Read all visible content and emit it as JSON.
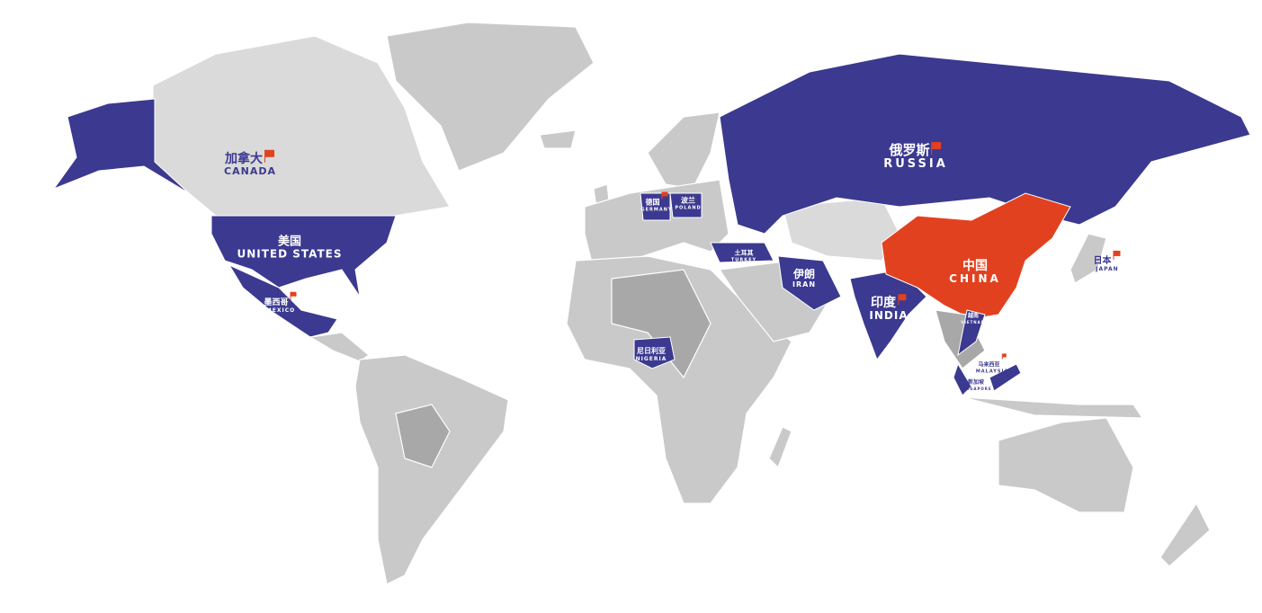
{
  "colors": {
    "highlight": "#3b3990",
    "home": "#e2411f",
    "land": "#c9c9c9",
    "land_dark": "#a8a8a8",
    "flag": "#e2411f"
  },
  "labels": {
    "canada": {
      "zh": "加拿大",
      "en": "CANADA",
      "flag": true
    },
    "usa": {
      "zh": "美国",
      "en": "UNITED STATES",
      "flag": false
    },
    "mexico": {
      "zh": "墨西哥",
      "en": "MEXICO",
      "flag": true
    },
    "germany": {
      "zh": "德国",
      "en": "GERMANY",
      "flag": true
    },
    "poland": {
      "zh": "波兰",
      "en": "POLAND",
      "flag": false
    },
    "turkey": {
      "zh": "土耳其",
      "en": "TURKEY",
      "flag": false
    },
    "russia": {
      "zh": "俄罗斯",
      "en": "RUSSIA",
      "flag": true
    },
    "iran": {
      "zh": "伊朗",
      "en": "IRAN",
      "flag": false
    },
    "india": {
      "zh": "印度",
      "en": "INDIA",
      "flag": true
    },
    "china": {
      "zh": "中国",
      "en": "CHINA",
      "flag": false
    },
    "japan": {
      "zh": "日本",
      "en": "JAPAN",
      "flag": true
    },
    "nigeria": {
      "zh": "尼日利亚",
      "en": "NIGERIA",
      "flag": false
    },
    "vietnam": {
      "zh": "越南",
      "en": "VIETNAM",
      "flag": false
    },
    "malaysia": {
      "zh": "马来西亚",
      "en": "MALAYSIA",
      "flag": true
    },
    "singapore": {
      "zh": "新加坡",
      "en": "SINGAPORE",
      "flag": false
    }
  }
}
